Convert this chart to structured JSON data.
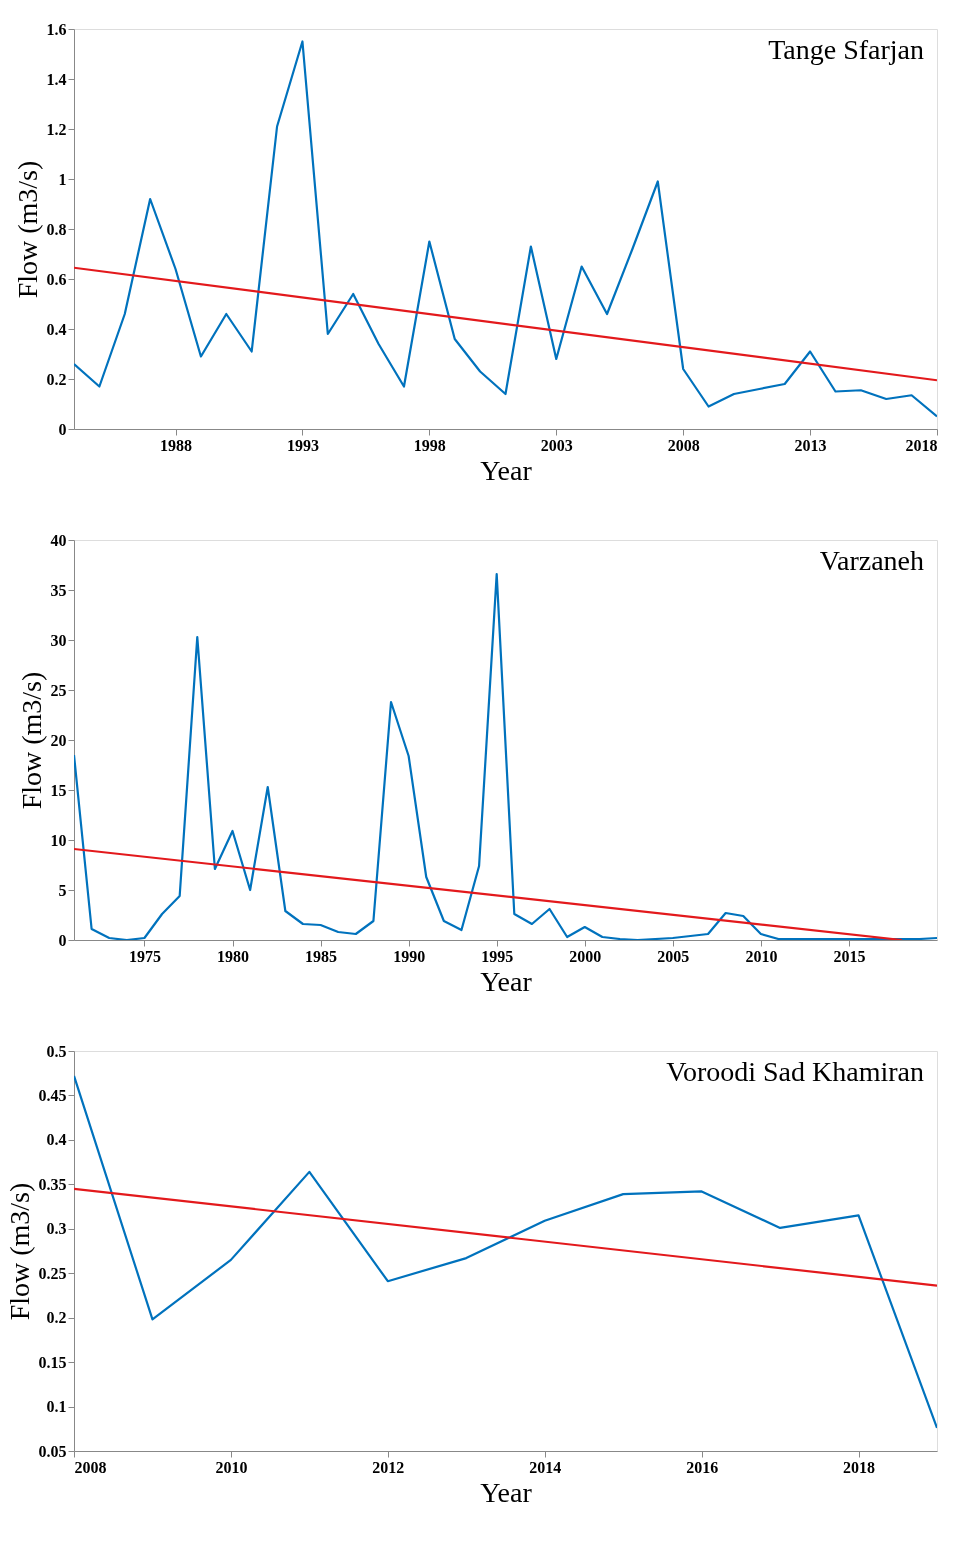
{
  "chart_data": [
    {
      "type": "line",
      "title": "Tange Sfarjan",
      "xlabel": "Year",
      "ylabel": "Flow (m3/s)",
      "xlim": [
        1984,
        2018
      ],
      "xticks": [
        1988,
        1993,
        1998,
        2003,
        2008,
        2013,
        2018
      ],
      "ylim": [
        0,
        1.6
      ],
      "yticks": [
        0,
        0.2,
        0.4,
        0.6,
        0.8,
        1,
        1.2,
        1.4,
        1.6
      ],
      "grid": false,
      "legend": false,
      "series": [
        {
          "color": "#0072bd",
          "x": [
            1984,
            1985,
            1986,
            1987,
            1988,
            1989,
            1990,
            1991,
            1992,
            1993,
            1994,
            1995,
            1996,
            1997,
            1998,
            1999,
            2000,
            2001,
            2002,
            2003,
            2004,
            2005,
            2006,
            2007,
            2008,
            2009,
            2010,
            2011,
            2012,
            2013,
            2014,
            2015,
            2016,
            2017,
            2018
          ],
          "values": [
            0.26,
            0.17,
            0.46,
            0.92,
            0.64,
            0.29,
            0.46,
            0.31,
            1.21,
            1.55,
            0.38,
            0.54,
            0.34,
            0.17,
            0.75,
            0.36,
            0.23,
            0.14,
            0.73,
            0.28,
            0.65,
            0.46,
            0.72,
            0.99,
            0.24,
            0.09,
            0.14,
            0.16,
            0.18,
            0.31,
            0.15,
            0.155,
            0.12,
            0.135,
            0.05
          ]
        },
        {
          "color": "#e3191c",
          "x": [
            1984,
            2018
          ],
          "values": [
            0.645,
            0.195
          ]
        }
      ]
    },
    {
      "type": "line",
      "title": "Varzaneh",
      "xlabel": "Year",
      "ylabel": "Flow (m3/s)",
      "xlim": [
        1971,
        2020
      ],
      "xticks": [
        1975,
        1980,
        1985,
        1990,
        1995,
        2000,
        2005,
        2010,
        2015
      ],
      "ylim": [
        0,
        40
      ],
      "yticks": [
        0,
        5,
        10,
        15,
        20,
        25,
        30,
        35,
        40
      ],
      "grid": false,
      "legend": false,
      "series": [
        {
          "color": "#0072bd",
          "x": [
            1971,
            1972,
            1973,
            1974,
            1975,
            1976,
            1977,
            1978,
            1979,
            1980,
            1981,
            1982,
            1983,
            1984,
            1985,
            1986,
            1987,
            1988,
            1989,
            1990,
            1991,
            1992,
            1993,
            1994,
            1995,
            1996,
            1997,
            1998,
            1999,
            2000,
            2001,
            2002,
            2003,
            2004,
            2005,
            2006,
            2007,
            2008,
            2009,
            2010,
            2011,
            2012,
            2013,
            2014,
            2015,
            2016,
            2017,
            2018,
            2019,
            2020
          ],
          "values": [
            18.5,
            1.1,
            0.2,
            0,
            0.2,
            2.6,
            4.4,
            30.3,
            7.1,
            10.9,
            5.0,
            15.3,
            2.9,
            1.6,
            1.5,
            0.8,
            0.6,
            1.9,
            23.8,
            18.4,
            6.3,
            1.9,
            1.0,
            7.4,
            36.6,
            2.6,
            1.6,
            3.1,
            0.3,
            1.3,
            0.3,
            0.1,
            0,
            0.1,
            0.2,
            0.4,
            0.6,
            2.7,
            2.4,
            0.6,
            0.1,
            0.1,
            0.1,
            0.1,
            0.1,
            0.1,
            0.1,
            0.1,
            0.1,
            0.2
          ]
        },
        {
          "color": "#e3191c",
          "x": [
            1971,
            2018
          ],
          "values": [
            9.1,
            0
          ]
        }
      ]
    },
    {
      "type": "line",
      "title": "Voroodi Sad Khamiran",
      "xlabel": "Year",
      "ylabel": "Flow (m3/s)",
      "xlim": [
        2008,
        2019
      ],
      "xticks": [
        2008,
        2010,
        2012,
        2014,
        2016,
        2018
      ],
      "ylim": [
        0.05,
        0.5
      ],
      "yticks": [
        0.05,
        0.1,
        0.15,
        0.2,
        0.25,
        0.3,
        0.35,
        0.4,
        0.45,
        0.5
      ],
      "grid": false,
      "legend": false,
      "series": [
        {
          "color": "#0072bd",
          "x": [
            2008,
            2009,
            2010,
            2011,
            2012,
            2013,
            2014,
            2015,
            2016,
            2017,
            2018,
            2019
          ],
          "values": [
            0.472,
            0.198,
            0.265,
            0.364,
            0.241,
            0.267,
            0.309,
            0.339,
            0.342,
            0.301,
            0.315,
            0.076
          ]
        },
        {
          "color": "#e3191c",
          "x": [
            2008,
            2019
          ],
          "values": [
            0.345,
            0.236
          ]
        }
      ]
    }
  ]
}
